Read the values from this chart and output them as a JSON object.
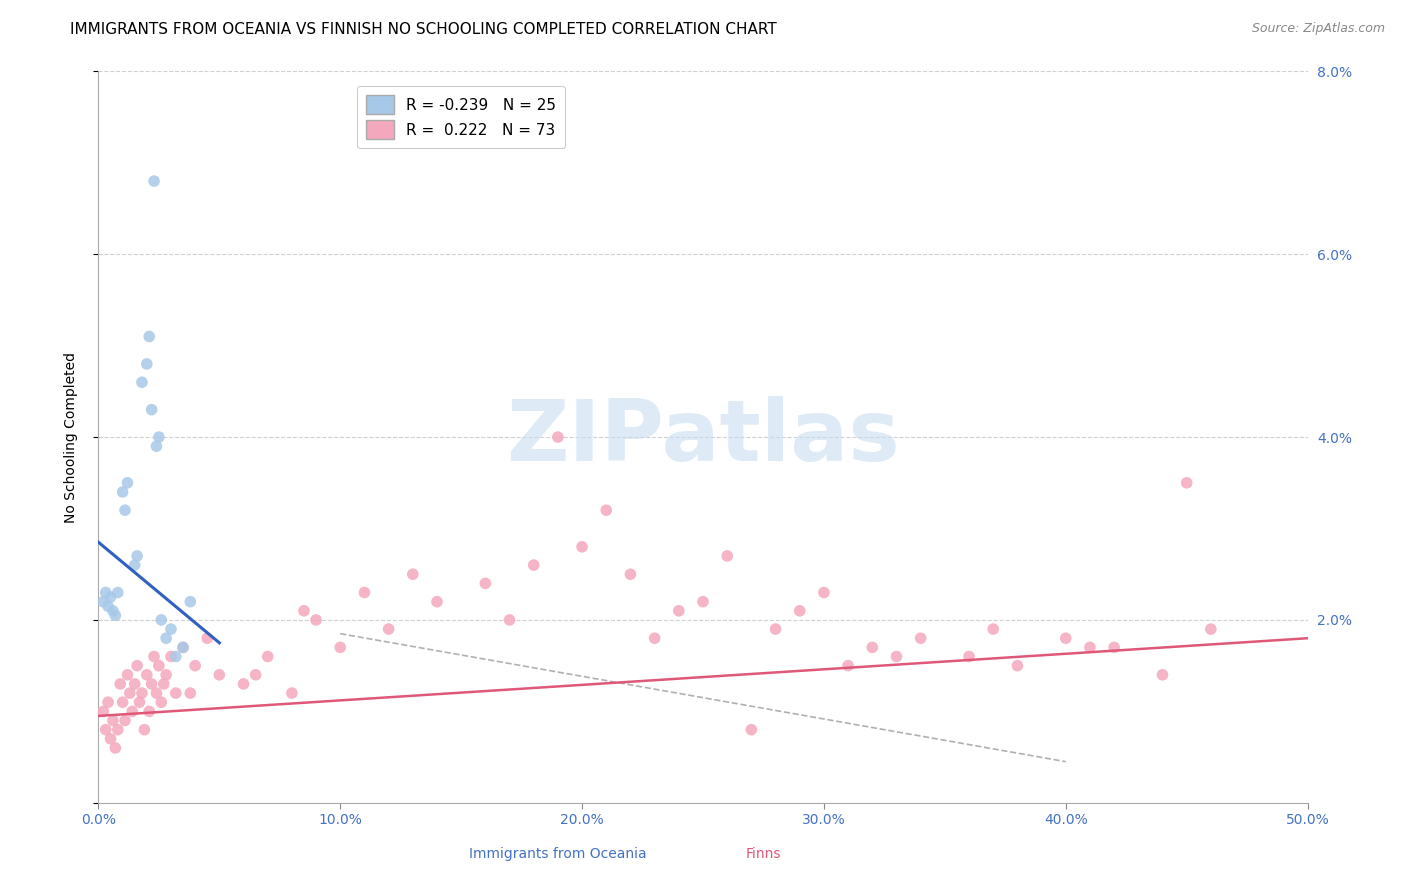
{
  "title": "IMMIGRANTS FROM OCEANIA VS FINNISH NO SCHOOLING COMPLETED CORRELATION CHART",
  "source": "Source: ZipAtlas.com",
  "ylabel": "No Schooling Completed",
  "x_tick_labels": [
    "0.0%",
    "10.0%",
    "20.0%",
    "30.0%",
    "40.0%",
    "50.0%"
  ],
  "x_tick_values": [
    0.0,
    10.0,
    20.0,
    30.0,
    40.0,
    50.0
  ],
  "y_tick_values": [
    0.0,
    2.0,
    4.0,
    6.0,
    8.0
  ],
  "xlim": [
    0.0,
    50.0
  ],
  "ylim": [
    0.0,
    8.0
  ],
  "right_y_tick_labels": [
    "8.0%",
    "6.0%",
    "4.0%",
    "2.0%"
  ],
  "right_y_tick_values": [
    8.0,
    6.0,
    4.0,
    2.0
  ],
  "legend_blue_label": "R = -0.239   N = 25",
  "legend_pink_label": "R =  0.222   N = 73",
  "blue_color": "#a8c8e8",
  "pink_color": "#f4a8be",
  "blue_line_color": "#3060c0",
  "pink_line_color": "#e05878",
  "watermark_text": "ZIPatlas",
  "blue_scatter_x": [
    0.2,
    0.3,
    0.4,
    0.5,
    0.6,
    0.7,
    0.8,
    1.0,
    1.1,
    1.2,
    1.5,
    1.6,
    1.8,
    2.0,
    2.1,
    2.2,
    2.4,
    2.5,
    2.6,
    2.8,
    3.0,
    3.2,
    3.5,
    3.8,
    2.3
  ],
  "blue_scatter_y": [
    2.2,
    2.3,
    2.15,
    2.25,
    2.1,
    2.05,
    2.3,
    3.4,
    3.2,
    3.5,
    2.6,
    2.7,
    4.6,
    4.8,
    5.1,
    4.3,
    3.9,
    4.0,
    2.0,
    1.8,
    1.9,
    1.6,
    1.7,
    2.2,
    6.8
  ],
  "pink_scatter_x": [
    0.2,
    0.3,
    0.4,
    0.5,
    0.6,
    0.7,
    0.8,
    0.9,
    1.0,
    1.1,
    1.2,
    1.3,
    1.4,
    1.5,
    1.6,
    1.7,
    1.8,
    1.9,
    2.0,
    2.1,
    2.2,
    2.3,
    2.4,
    2.5,
    2.6,
    2.8,
    3.0,
    3.2,
    3.5,
    4.0,
    5.0,
    6.0,
    7.0,
    8.0,
    9.0,
    10.0,
    12.0,
    14.0,
    16.0,
    18.0,
    20.0,
    22.0,
    24.0,
    26.0,
    28.0,
    30.0,
    32.0,
    34.0,
    36.0,
    38.0,
    40.0,
    42.0,
    44.0,
    46.0,
    17.0,
    21.0,
    25.0,
    29.0,
    33.0,
    37.0,
    41.0,
    45.0,
    13.0,
    11.0,
    8.5,
    6.5,
    4.5,
    3.8,
    2.7,
    19.0,
    23.0,
    27.0,
    31.0
  ],
  "pink_scatter_y": [
    1.0,
    0.8,
    1.1,
    0.7,
    0.9,
    0.6,
    0.8,
    1.3,
    1.1,
    0.9,
    1.4,
    1.2,
    1.0,
    1.3,
    1.5,
    1.1,
    1.2,
    0.8,
    1.4,
    1.0,
    1.3,
    1.6,
    1.2,
    1.5,
    1.1,
    1.4,
    1.6,
    1.2,
    1.7,
    1.5,
    1.4,
    1.3,
    1.6,
    1.2,
    2.0,
    1.7,
    1.9,
    2.2,
    2.4,
    2.6,
    2.8,
    2.5,
    2.1,
    2.7,
    1.9,
    2.3,
    1.7,
    1.8,
    1.6,
    1.5,
    1.8,
    1.7,
    1.4,
    1.9,
    2.0,
    3.2,
    2.2,
    2.1,
    1.6,
    1.9,
    1.7,
    3.5,
    2.5,
    2.3,
    2.1,
    1.4,
    1.8,
    1.2,
    1.3,
    4.0,
    1.8,
    0.8,
    1.5
  ],
  "blue_line_x": [
    0.0,
    5.0
  ],
  "blue_line_y": [
    2.85,
    1.75
  ],
  "pink_line_x": [
    0.0,
    50.0
  ],
  "pink_line_y": [
    0.95,
    1.8
  ],
  "diag_line_x": [
    10.0,
    40.0
  ],
  "diag_line_y": [
    1.85,
    0.45
  ],
  "background_color": "#ffffff",
  "grid_color": "#d0d0d0",
  "title_fontsize": 11,
  "axis_label_fontsize": 10,
  "tick_fontsize": 10,
  "legend_fontsize": 11,
  "scatter_size": 70
}
